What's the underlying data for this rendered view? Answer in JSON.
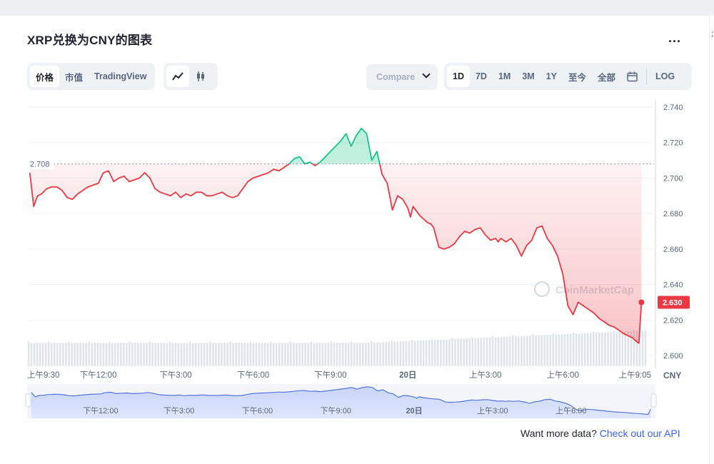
{
  "header": {
    "title": "XRP兑换为CNY的图表",
    "more_label": "..."
  },
  "view_tabs": [
    "价格",
    "市值",
    "TradingView"
  ],
  "chart_mode": {
    "line_icon": "line-chart-icon",
    "candle_icon": "candlestick-icon"
  },
  "compare": {
    "label": "Compare"
  },
  "ranges": [
    "1D",
    "7D",
    "1M",
    "3M",
    "1Y",
    "至今",
    "全部"
  ],
  "calendar_icon": "calendar-icon",
  "log_label": "LOG",
  "watermark": "CoinMarketCap",
  "currency": "CNY",
  "footer": {
    "text": "Want more data?",
    "link": "Check out our API"
  },
  "colors": {
    "up": "#16c784",
    "down": "#ea3943",
    "accent": "#3861fb",
    "nav": "#5476dd"
  },
  "chart_data": {
    "type": "line",
    "title": "",
    "xlabel": "",
    "ylabel": "",
    "y_ticks": [
      2.6,
      2.62,
      2.64,
      2.66,
      2.68,
      2.7,
      2.72,
      2.74
    ],
    "y_tick_labels": [
      "2.600",
      "2.620",
      "2.640",
      "2.660",
      "2.680",
      "2.700",
      "2.720",
      "2.740"
    ],
    "ylim": [
      2.594,
      2.742
    ],
    "x_range": [
      9.3,
      33.15
    ],
    "x_ticks": [
      {
        "x": 9.5,
        "label": "上午9:30"
      },
      {
        "x": 12,
        "label": "下午12:00"
      },
      {
        "x": 15,
        "label": "下午3:00"
      },
      {
        "x": 18,
        "label": "下午6:00"
      },
      {
        "x": 21,
        "label": "下午9:00"
      },
      {
        "x": 24,
        "label": "20日"
      },
      {
        "x": 27,
        "label": "上午3:00"
      },
      {
        "x": 30,
        "label": "上午6:00"
      },
      {
        "x": 33,
        "label": "上午9:05"
      }
    ],
    "nav_ticks": [
      {
        "x": 12,
        "label": "下午12:00"
      },
      {
        "x": 15,
        "label": "下午3:00"
      },
      {
        "x": 18,
        "label": "下午6:00"
      },
      {
        "x": 21,
        "label": "下午9:00"
      },
      {
        "x": 24,
        "label": "20日"
      },
      {
        "x": 27,
        "label": "上午3:00"
      },
      {
        "x": 30,
        "label": "上午6:00"
      }
    ],
    "baseline": 2.708,
    "baseline_label": "2.708",
    "last_price": 2.63,
    "last_price_label": "2.630",
    "series": [
      {
        "x": [
          9.35,
          9.5,
          9.65,
          9.8,
          10.0,
          10.2,
          10.4,
          10.6,
          10.8,
          11.0,
          11.2,
          11.4,
          11.6,
          11.8,
          12.0,
          12.2,
          12.4,
          12.6,
          12.8,
          13.0,
          13.2,
          13.4,
          13.6,
          13.8,
          14.0,
          14.2,
          14.4,
          14.6,
          14.8,
          15.0,
          15.2,
          15.4,
          15.6,
          15.8,
          16.0,
          16.2,
          16.4,
          16.6,
          16.8,
          17.0,
          17.2,
          17.4,
          17.6,
          17.8,
          18.0,
          18.2,
          18.4,
          18.6,
          18.8,
          19.0,
          19.2,
          19.4,
          19.6,
          19.8,
          20.0,
          20.2,
          20.4,
          20.6,
          20.8,
          21.0,
          21.2,
          21.4,
          21.6,
          21.8,
          22.0,
          22.2,
          22.4,
          22.6,
          22.8,
          23.0,
          23.2,
          23.4,
          23.6,
          23.8,
          24.0,
          24.1,
          24.2,
          24.3,
          24.45,
          24.6,
          24.75,
          24.9,
          25.0,
          25.2,
          25.4,
          25.6,
          25.8,
          26.0,
          26.2,
          26.4,
          26.6,
          26.8,
          27.0,
          27.2,
          27.4,
          27.5,
          27.6,
          27.8,
          28.0,
          28.2,
          28.4,
          28.6,
          28.8,
          29.0,
          29.2,
          29.4,
          29.6,
          29.8,
          30.0,
          30.2,
          30.4,
          30.6,
          30.8,
          31.0,
          31.2,
          31.4,
          31.6,
          31.8,
          32.0,
          32.2,
          32.4,
          32.55,
          32.7,
          32.85,
          32.95,
          33.05
        ],
        "y": [
          2.703,
          2.684,
          2.69,
          2.691,
          2.694,
          2.695,
          2.695,
          2.693,
          2.689,
          2.688,
          2.691,
          2.693,
          2.695,
          2.696,
          2.697,
          2.703,
          2.704,
          2.698,
          2.7,
          2.701,
          2.698,
          2.699,
          2.7,
          2.703,
          2.7,
          2.694,
          2.692,
          2.691,
          2.69,
          2.692,
          2.689,
          2.691,
          2.69,
          2.692,
          2.692,
          2.69,
          2.69,
          2.691,
          2.692,
          2.69,
          2.689,
          2.69,
          2.694,
          2.698,
          2.7,
          2.701,
          2.702,
          2.703,
          2.705,
          2.704,
          2.706,
          2.708,
          2.711,
          2.712,
          2.708,
          2.709,
          2.707,
          2.709,
          2.712,
          2.715,
          2.718,
          2.721,
          2.725,
          2.718,
          2.724,
          2.728,
          2.725,
          2.71,
          2.715,
          2.702,
          2.697,
          2.682,
          2.69,
          2.688,
          2.683,
          2.678,
          2.684,
          2.682,
          2.679,
          2.677,
          2.675,
          2.674,
          2.672,
          2.661,
          2.66,
          2.661,
          2.663,
          2.667,
          2.67,
          2.669,
          2.671,
          2.672,
          2.668,
          2.665,
          2.666,
          2.664,
          2.666,
          2.664,
          2.666,
          2.662,
          2.656,
          2.662,
          2.665,
          2.672,
          2.673,
          2.666,
          2.662,
          2.656,
          2.646,
          2.628,
          2.623,
          2.63,
          2.628,
          2.626,
          2.624,
          2.621,
          2.619,
          2.617,
          2.616,
          2.614,
          2.612,
          2.611,
          2.61,
          2.608,
          2.607,
          2.63
        ]
      }
    ]
  }
}
